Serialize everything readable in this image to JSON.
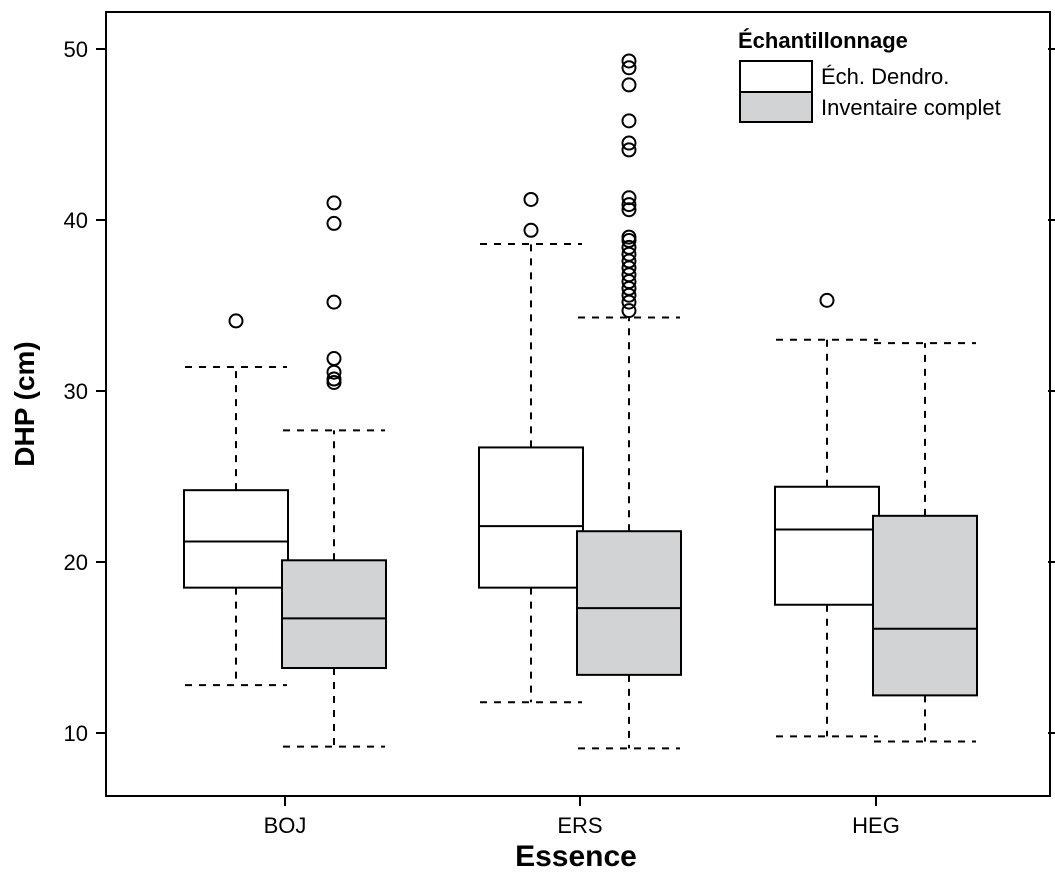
{
  "chart_data": {
    "type": "boxplot",
    "xlabel": "Essence",
    "ylabel": "DHP (cm)",
    "ylim": [
      6.5,
      52.5
    ],
    "yticks": [
      10,
      20,
      30,
      40,
      50
    ],
    "categories": [
      "BOJ",
      "ERS",
      "HEG"
    ],
    "legend": {
      "title": "Échantillonnage",
      "position": "top-right",
      "entries": [
        {
          "label": "Éch. Dendro.",
          "fill": "#ffffff"
        },
        {
          "label": "Inventaire complet",
          "fill": "#d2d3d5"
        }
      ]
    },
    "series": [
      {
        "name": "Éch. Dendro.",
        "fill": "#ffffff",
        "boxes": [
          {
            "category": "BOJ",
            "whisker_low": 12.8,
            "q1": 18.5,
            "median": 21.2,
            "q3": 24.2,
            "whisker_high": 31.4,
            "outliers": [
              34.1
            ]
          },
          {
            "category": "ERS",
            "whisker_low": 11.8,
            "q1": 18.5,
            "median": 22.1,
            "q3": 26.7,
            "whisker_high": 38.6,
            "outliers": [
              39.4,
              41.2
            ]
          },
          {
            "category": "HEG",
            "whisker_low": 9.8,
            "q1": 17.5,
            "median": 21.9,
            "q3": 24.4,
            "whisker_high": 33.0,
            "outliers": [
              35.3
            ]
          }
        ]
      },
      {
        "name": "Inventaire complet",
        "fill": "#d2d3d5",
        "boxes": [
          {
            "category": "BOJ",
            "whisker_low": 9.2,
            "q1": 13.8,
            "median": 16.7,
            "q3": 20.1,
            "whisker_high": 27.7,
            "outliers": [
              30.5,
              30.7,
              31.1,
              31.9,
              35.2,
              39.8,
              41.0
            ]
          },
          {
            "category": "ERS",
            "whisker_low": 9.1,
            "q1": 13.4,
            "median": 17.3,
            "q3": 21.8,
            "whisker_high": 34.3,
            "outliers": [
              34.7,
              35.2,
              35.6,
              36.0,
              36.4,
              36.8,
              37.2,
              37.6,
              38.0,
              38.4,
              38.8,
              39.0,
              40.6,
              40.9,
              41.3,
              44.1,
              44.5,
              45.8,
              47.9,
              48.9,
              49.3
            ]
          },
          {
            "category": "HEG",
            "whisker_low": 9.5,
            "q1": 12.2,
            "median": 16.1,
            "q3": 22.7,
            "whisker_high": 32.8,
            "outliers": []
          }
        ]
      }
    ]
  }
}
